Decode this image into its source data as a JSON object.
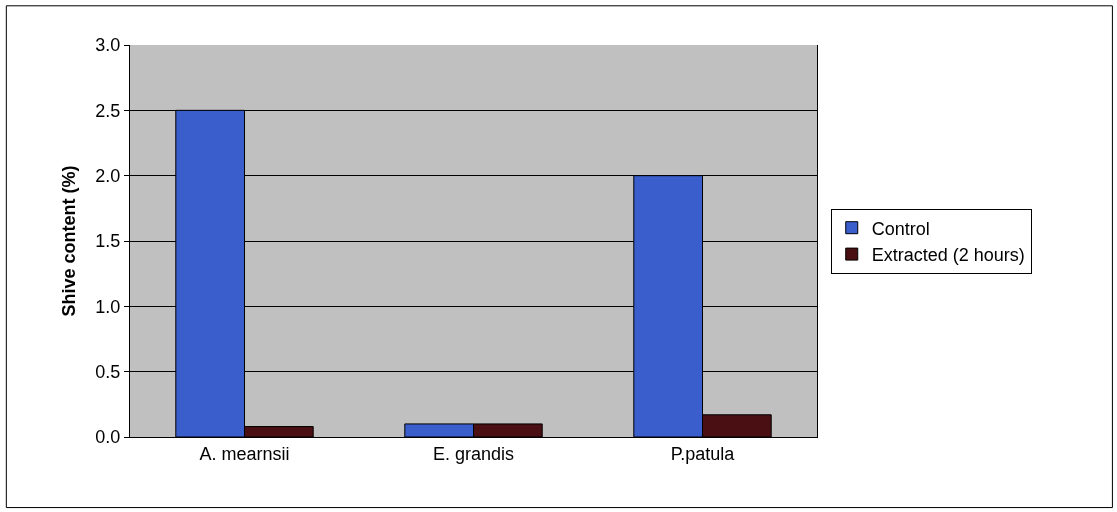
{
  "chart_data": {
    "type": "bar",
    "ylabel": "Shive content (%)",
    "categories": [
      "A. mearnsii",
      "E. grandis",
      "P.patula"
    ],
    "series": [
      {
        "name": "Control",
        "color": "#3a5fcd",
        "values": [
          2.5,
          0.1,
          2.0
        ]
      },
      {
        "name": "Extracted (2 hours)",
        "color": "#4a0f12",
        "values": [
          0.08,
          0.1,
          0.17
        ]
      }
    ],
    "ylim": [
      0,
      3
    ],
    "yticks": [
      {
        "value": 0,
        "label": "0.0"
      },
      {
        "value": 0.5,
        "label": "0.5"
      },
      {
        "value": 1,
        "label": "1.0"
      },
      {
        "value": 1.5,
        "label": "1.5"
      },
      {
        "value": 2,
        "label": "2.0"
      },
      {
        "value": 2.5,
        "label": "2.5"
      },
      {
        "value": 3,
        "label": "3.0"
      }
    ],
    "grid": "y",
    "legend": "right"
  }
}
